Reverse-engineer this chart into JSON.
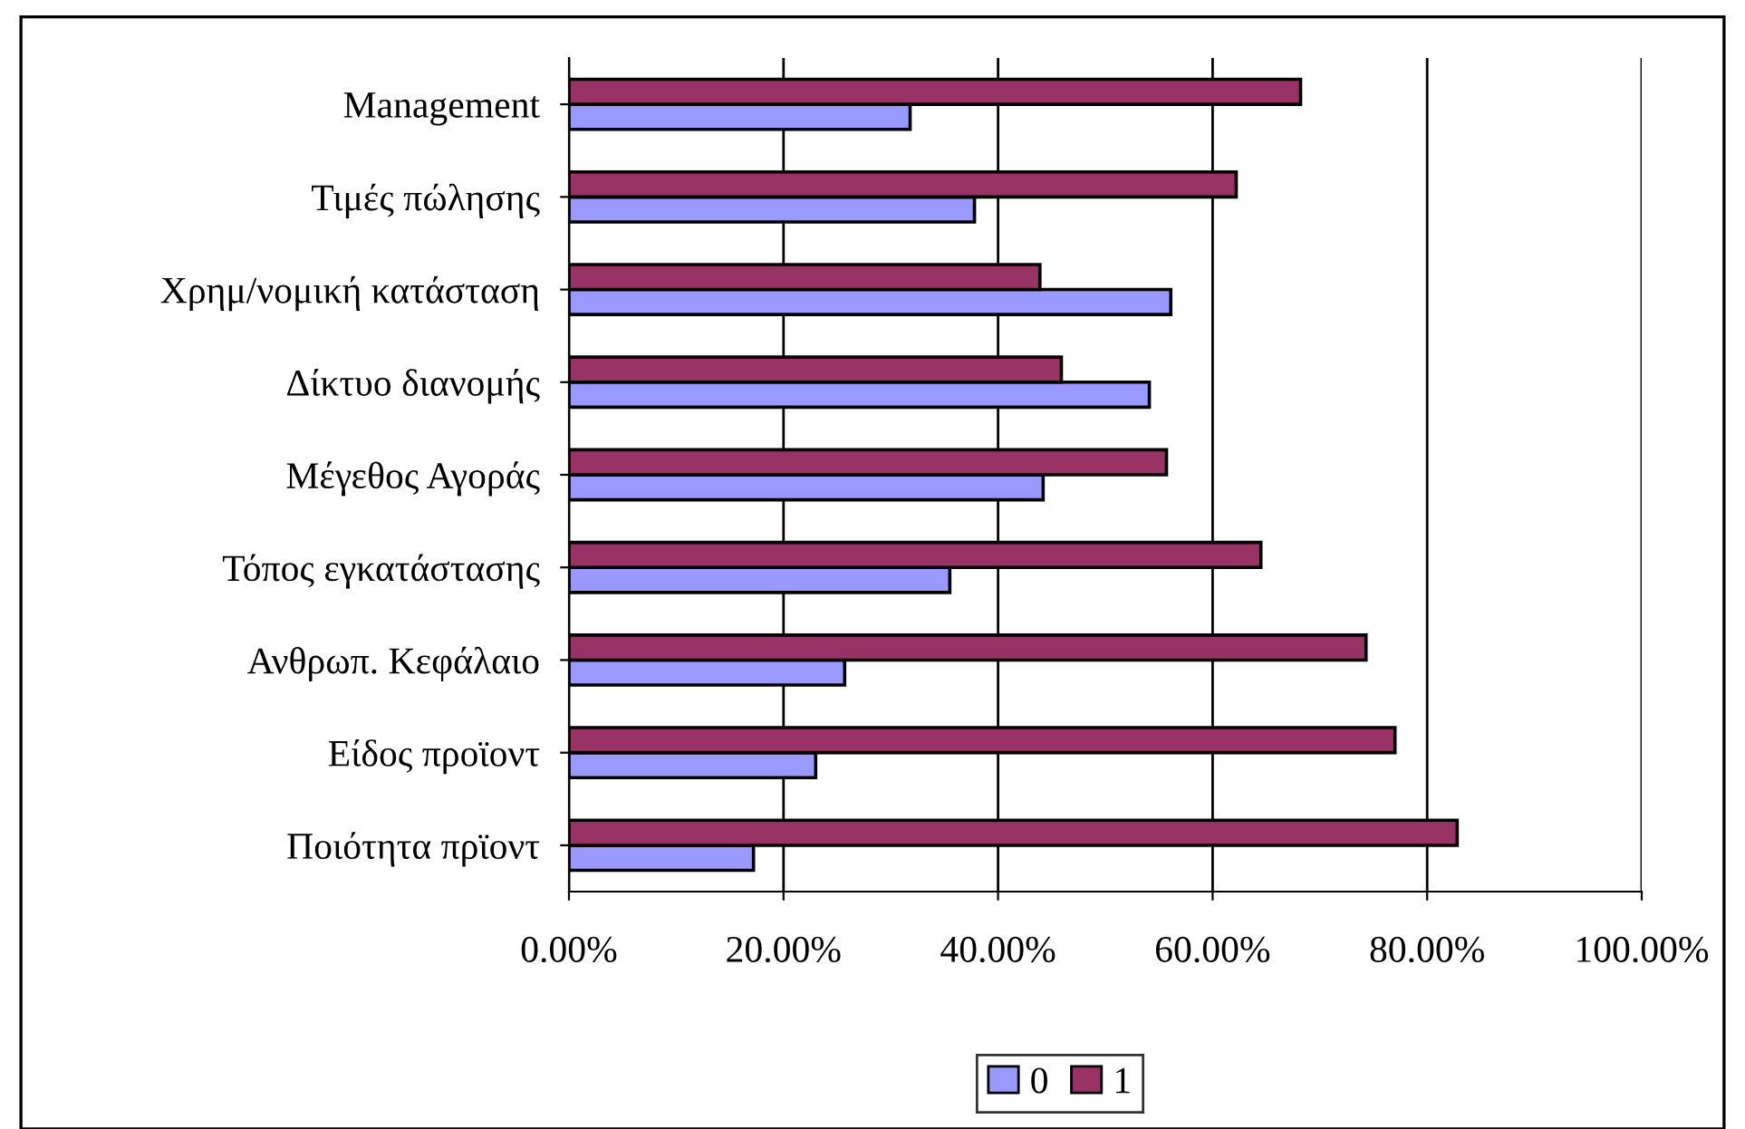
{
  "chart_data": {
    "type": "bar",
    "orientation": "horizontal",
    "categories": [
      "Management",
      "Τιμές πώλησης",
      "Χρημ/νομική κατάσταση",
      "Δίκτυο διανομής",
      "Μέγεθος Αγοράς",
      "Τόπος εγκατάστασης",
      "Ανθρωπ. Κεφάλαιο",
      "Είδος προϊοντ",
      "Ποιότητα πρϊοντ"
    ],
    "series": [
      {
        "name": "0",
        "color": "#9999ff",
        "values": [
          31.8,
          37.8,
          56.1,
          54.1,
          44.2,
          35.5,
          25.7,
          23.0,
          17.2
        ]
      },
      {
        "name": "1",
        "color": "#993366",
        "values": [
          68.2,
          62.2,
          43.9,
          45.9,
          55.7,
          64.5,
          74.3,
          77.0,
          82.8
        ]
      }
    ],
    "xlim": [
      0,
      100
    ],
    "xticks": [
      {
        "value": 0,
        "label": "0.00%"
      },
      {
        "value": 20,
        "label": "20.00%"
      },
      {
        "value": 40,
        "label": "40.00%"
      },
      {
        "value": 60,
        "label": "60.00%"
      },
      {
        "value": 80,
        "label": "80.00%"
      },
      {
        "value": 100,
        "label": "100.00%"
      }
    ],
    "grid": "x",
    "legend": "bottom"
  }
}
